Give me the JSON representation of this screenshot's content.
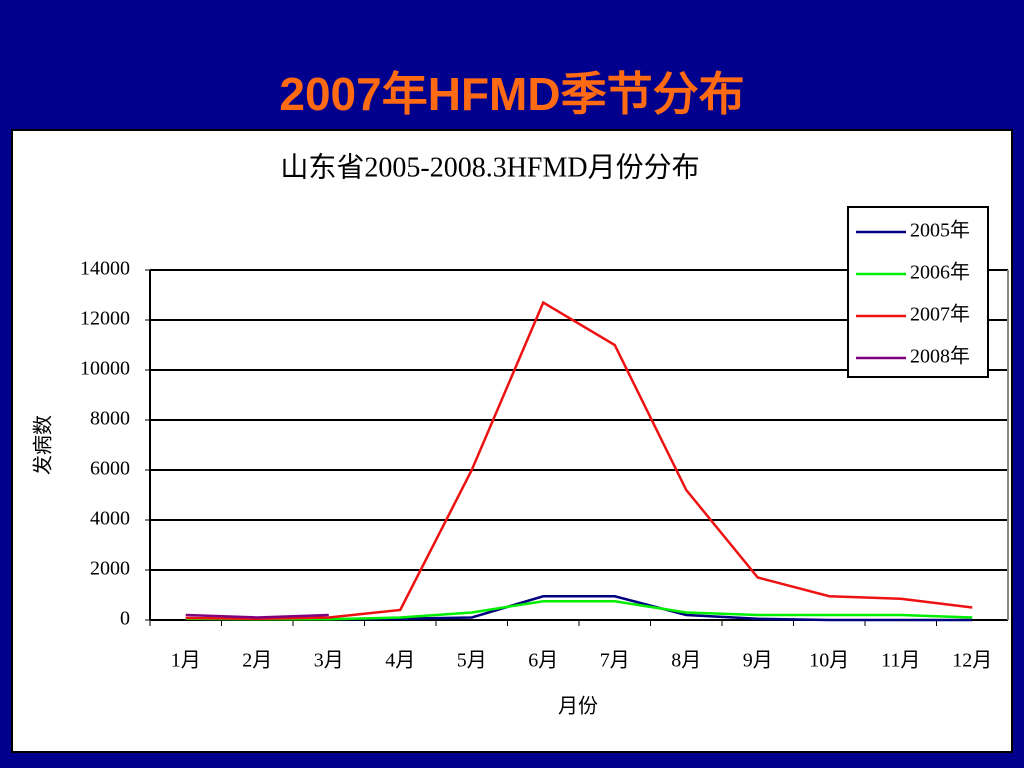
{
  "slide_title": "2007年HFMD季节分布",
  "chart_data": {
    "type": "line",
    "title": "山东省2005-2008.3HFMD月份分布",
    "x_label": "月份",
    "y_label": "发病数",
    "categories": [
      "1月",
      "2月",
      "3月",
      "4月",
      "5月",
      "6月",
      "7月",
      "8月",
      "9月",
      "10月",
      "11月",
      "12月"
    ],
    "series": [
      {
        "name": "2005年",
        "color": "#000080",
        "values": [
          50,
          30,
          30,
          50,
          100,
          950,
          950,
          200,
          50,
          0,
          0,
          0
        ]
      },
      {
        "name": "2006年",
        "color": "#00ee00",
        "values": [
          50,
          30,
          30,
          100,
          300,
          750,
          750,
          300,
          200,
          200,
          200,
          100
        ]
      },
      {
        "name": "2007年",
        "color": "#ee1111",
        "values": [
          80,
          50,
          100,
          400,
          6000,
          12700,
          11000,
          5200,
          1700,
          950,
          850,
          500
        ]
      },
      {
        "name": "2008年",
        "color": "#800080",
        "values": [
          200,
          100,
          200,
          null,
          null,
          null,
          null,
          null,
          null,
          null,
          null,
          null
        ]
      }
    ],
    "ylim": [
      0,
      14000
    ],
    "yticks": [
      0,
      2000,
      4000,
      6000,
      8000,
      10000,
      12000,
      14000
    ],
    "grid": true,
    "legend": "top-right"
  }
}
